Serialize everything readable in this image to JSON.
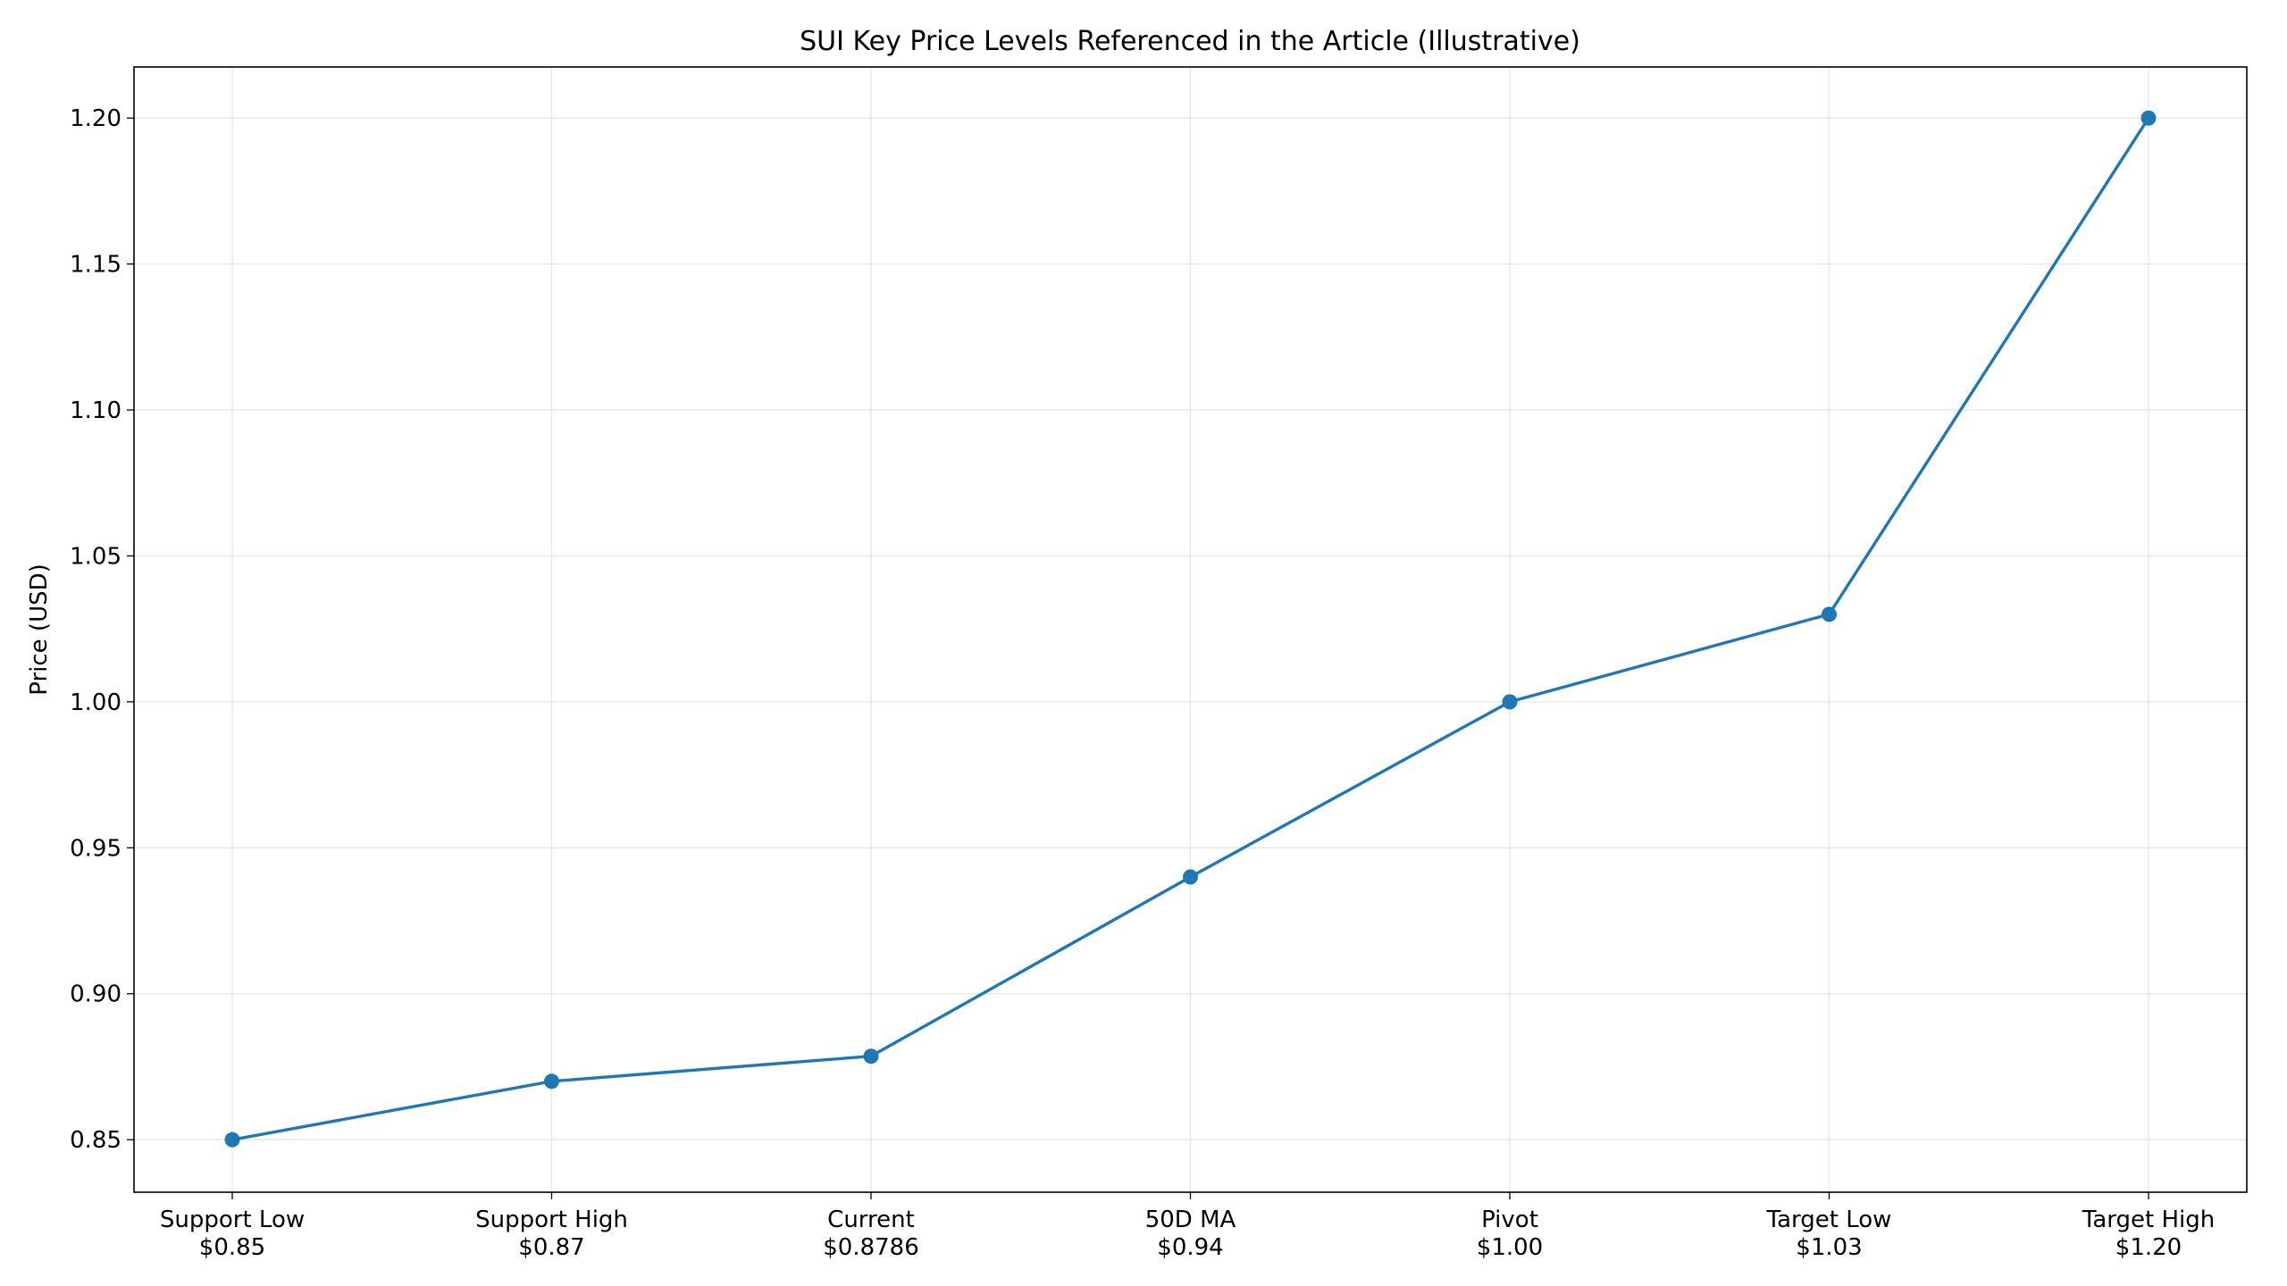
{
  "chart_data": {
    "type": "line",
    "title": "SUI Key Price Levels Referenced in the Article (Illustrative)",
    "xlabel": "",
    "ylabel": "Price (USD)",
    "categories": [
      [
        "Support Low",
        "$0.85"
      ],
      [
        "Support High",
        "$0.87"
      ],
      [
        "Current",
        "$0.8786"
      ],
      [
        "50D MA",
        "$0.94"
      ],
      [
        "Pivot",
        "$1.00"
      ],
      [
        "Target Low",
        "$1.03"
      ],
      [
        "Target High",
        "$1.20"
      ]
    ],
    "values": [
      0.85,
      0.87,
      0.8786,
      0.94,
      1.0,
      1.03,
      1.2
    ],
    "ylim": [
      0.832,
      1.2175
    ],
    "yticks": [
      "0.85",
      "0.90",
      "0.95",
      "1.00",
      "1.05",
      "1.10",
      "1.15",
      "1.20"
    ],
    "grid": true,
    "line_color": "#1f77b4",
    "marker": "circle"
  }
}
